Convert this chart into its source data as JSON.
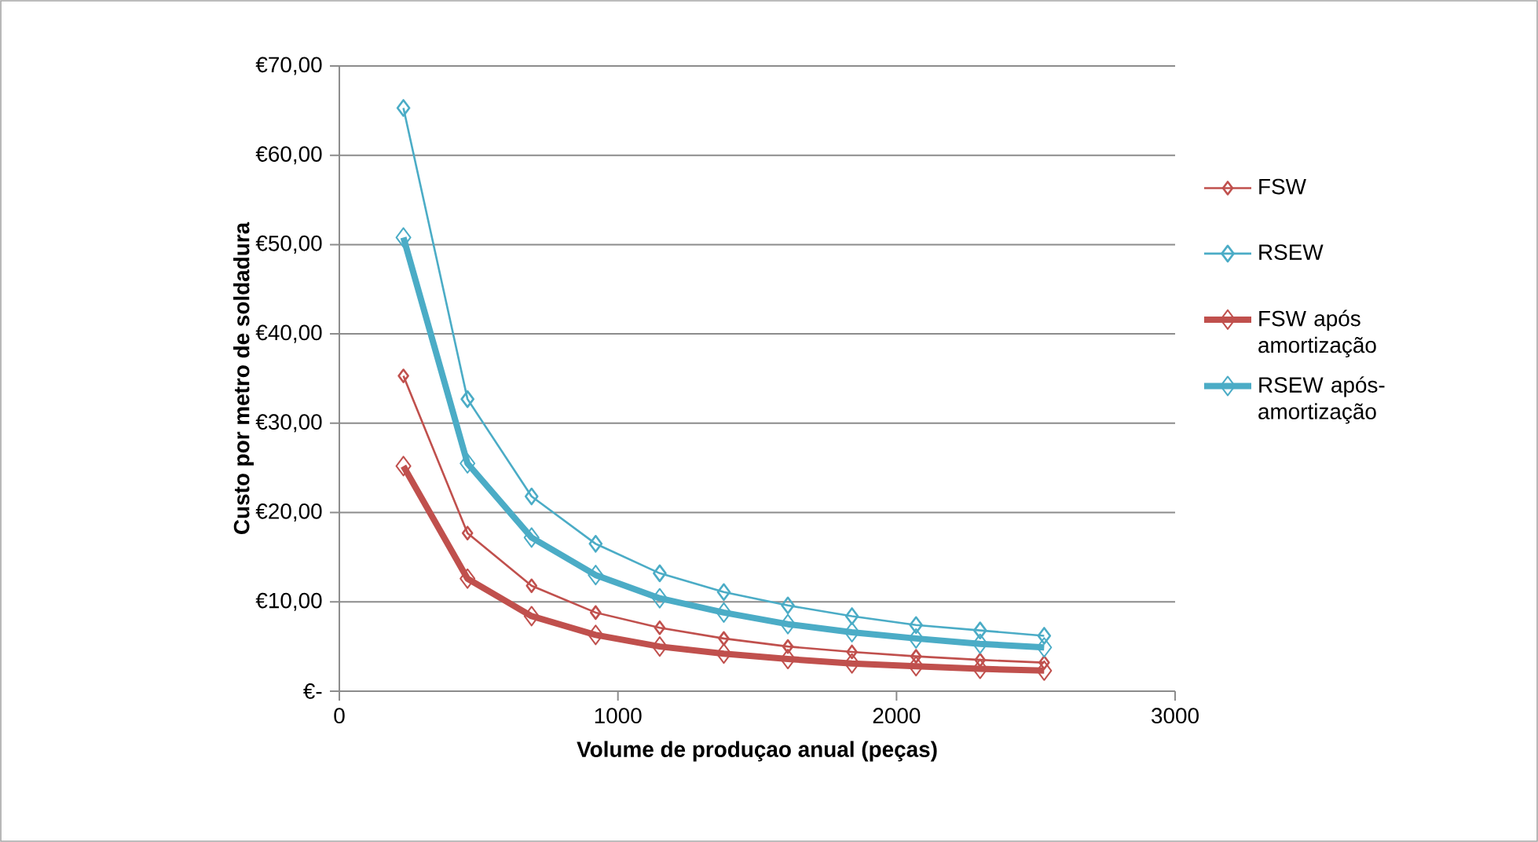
{
  "chart_data": {
    "type": "line",
    "xlabel": "Volume de produçao anual (peças)",
    "ylabel": "Custo por metro de soldadura",
    "x": [
      230,
      460,
      690,
      920,
      1150,
      1380,
      1610,
      1840,
      2070,
      2300,
      2530
    ],
    "series": [
      {
        "name": "FSW",
        "color": "#c0504d",
        "values": [
          35.3,
          17.7,
          11.8,
          8.8,
          7.1,
          5.9,
          5.0,
          4.4,
          3.9,
          3.5,
          3.2
        ]
      },
      {
        "name": "RSEW",
        "color": "#4bacc6",
        "values": [
          65.3,
          32.7,
          21.8,
          16.5,
          13.2,
          11.1,
          9.6,
          8.4,
          7.4,
          6.8,
          6.2
        ]
      },
      {
        "name": "FSW após amortização",
        "color": "#c0504d",
        "values": [
          25.2,
          12.6,
          8.4,
          6.3,
          5.0,
          4.2,
          3.6,
          3.1,
          2.8,
          2.5,
          2.3
        ]
      },
      {
        "name": "RSEW após-amortização",
        "color": "#4bacc6",
        "values": [
          50.8,
          25.5,
          17.2,
          13.0,
          10.4,
          8.8,
          7.5,
          6.6,
          5.9,
          5.3,
          4.9
        ]
      }
    ],
    "xlim": [
      0,
      3000
    ],
    "xticks": [
      0,
      1000,
      2000,
      3000
    ],
    "ylim": [
      0,
      70
    ],
    "yticks": [
      {
        "value": 0,
        "label": "€-"
      },
      {
        "value": 10,
        "label": "€10,00"
      },
      {
        "value": 20,
        "label": "€20,00"
      },
      {
        "value": 30,
        "label": "€30,00"
      },
      {
        "value": 40,
        "label": "€40,00"
      },
      {
        "value": 50,
        "label": "€50,00"
      },
      {
        "value": 60,
        "label": "€60,00"
      },
      {
        "value": 70,
        "label": "€70,00"
      }
    ],
    "grid": "y",
    "legend": "right",
    "marker": "diamond",
    "line_style": "solid"
  }
}
